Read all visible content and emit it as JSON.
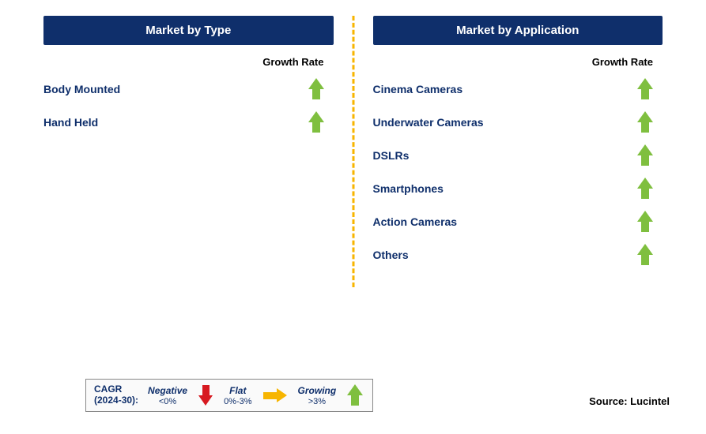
{
  "colors": {
    "header_bg": "#0f2f6b",
    "header_text": "#ffffff",
    "label_text": "#0f2f6b",
    "divider": "#f7b500",
    "arrow_growing": "#7fbf3f",
    "arrow_flat": "#f7b500",
    "arrow_negative": "#d71920",
    "legend_border": "#888888",
    "legend_bg": "#fafafa"
  },
  "left_panel": {
    "title": "Market by Type",
    "column_header": "Growth Rate",
    "rows": [
      {
        "label": "Body Mounted",
        "trend": "growing"
      },
      {
        "label": "Hand Held",
        "trend": "growing"
      }
    ]
  },
  "right_panel": {
    "title": "Market by Application",
    "column_header": "Growth Rate",
    "rows": [
      {
        "label": "Cinema Cameras",
        "trend": "growing"
      },
      {
        "label": "Underwater Cameras",
        "trend": "growing"
      },
      {
        "label": "DSLRs",
        "trend": "growing"
      },
      {
        "label": "Smartphones",
        "trend": "growing"
      },
      {
        "label": "Action Cameras",
        "trend": "growing"
      },
      {
        "label": "Others",
        "trend": "growing"
      }
    ]
  },
  "legend": {
    "lead_line1": "CAGR",
    "lead_line2": "(2024-30):",
    "items": [
      {
        "title": "Negative",
        "sub": "<0%",
        "arrow": "down",
        "color_key": "arrow_negative"
      },
      {
        "title": "Flat",
        "sub": "0%-3%",
        "arrow": "right",
        "color_key": "arrow_flat"
      },
      {
        "title": "Growing",
        "sub": ">3%",
        "arrow": "up",
        "color_key": "arrow_growing"
      }
    ]
  },
  "source": "Source: Lucintel"
}
